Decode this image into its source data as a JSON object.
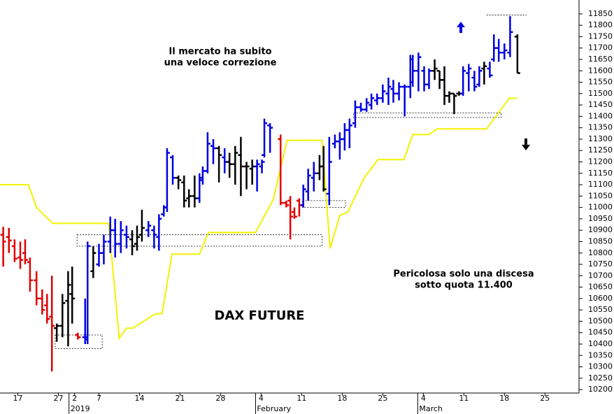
{
  "chart_data": {
    "type": "ohlc",
    "title": "DAX FUTURE",
    "annotations": [
      "Il mercato ha subito",
      "una veloce correzione",
      "Pericolosa solo una discesa",
      "sotto quota 11.400"
    ],
    "xlim": [
      -2.2,
      69.2
    ],
    "ylim": [
      10185,
      11911
    ],
    "yticks": [
      10200,
      10250,
      10300,
      10350,
      10400,
      10450,
      10500,
      10550,
      10600,
      10650,
      10700,
      10750,
      10800,
      10850,
      10900,
      10950,
      11000,
      11050,
      11100,
      11150,
      11200,
      11250,
      11300,
      11350,
      11400,
      11450,
      11500,
      11550,
      11600,
      11650,
      11700,
      11750,
      11800,
      11850
    ],
    "xticks": [
      {
        "value": 0,
        "label": "17"
      },
      {
        "value": 5,
        "label": "27"
      },
      {
        "value": 7,
        "label": "2"
      },
      {
        "value": 10,
        "label": "7"
      },
      {
        "value": 15,
        "label": "14"
      },
      {
        "value": 20,
        "label": "21"
      },
      {
        "value": 25,
        "label": "28"
      },
      {
        "value": 30,
        "label": "4"
      },
      {
        "value": 35,
        "label": "11"
      },
      {
        "value": 40,
        "label": "18"
      },
      {
        "value": 45,
        "label": "25"
      },
      {
        "value": 50,
        "label": "4"
      },
      {
        "value": 55,
        "label": "11"
      },
      {
        "value": 60,
        "label": "18"
      },
      {
        "value": 65,
        "label": "25"
      }
    ],
    "xticks_major": [
      {
        "value": 7,
        "label": "2019"
      },
      {
        "value": 30,
        "label": "February"
      },
      {
        "value": 50,
        "label": "March"
      }
    ],
    "bars": [
      {
        "x": -1.8,
        "open": 10880,
        "high": 10915,
        "low": 10740,
        "close": 10850,
        "color": "#e00000"
      },
      {
        "x": -1.1,
        "open": 10870,
        "high": 10910,
        "low": 10800,
        "close": 10855,
        "color": "#e00000"
      },
      {
        "x": -0.4,
        "open": 10830,
        "high": 10860,
        "low": 10760,
        "close": 10775,
        "color": "#e00000"
      },
      {
        "x": 0.3,
        "open": 10780,
        "high": 10850,
        "low": 10730,
        "close": 10770,
        "color": "#e00000"
      },
      {
        "x": 0.9,
        "open": 10800,
        "high": 10860,
        "low": 10750,
        "close": 10770,
        "color": "#e00000"
      },
      {
        "x": 1.5,
        "open": 10760,
        "high": 10780,
        "low": 10630,
        "close": 10680,
        "color": "#e00000"
      },
      {
        "x": 2.3,
        "open": 10680,
        "high": 10720,
        "low": 10570,
        "close": 10600,
        "color": "#e00000"
      },
      {
        "x": 3.0,
        "open": 10600,
        "high": 10640,
        "low": 10530,
        "close": 10550,
        "color": "#e00000"
      },
      {
        "x": 3.6,
        "open": 10570,
        "high": 10620,
        "low": 10490,
        "close": 10510,
        "color": "#e00000"
      },
      {
        "x": 4.2,
        "open": 10520,
        "high": 10700,
        "low": 10280,
        "close": 10480,
        "color": "#e00000"
      },
      {
        "x": 4.8,
        "open": 10470,
        "high": 10490,
        "low": 10410,
        "close": 10480,
        "color": "#000000"
      },
      {
        "x": 5.5,
        "open": 10480,
        "high": 10620,
        "low": 10430,
        "close": 10580,
        "color": "#000000"
      },
      {
        "x": 6.2,
        "open": 10590,
        "high": 10720,
        "low": 10390,
        "close": 10660,
        "color": "#000000"
      },
      {
        "x": 6.7,
        "open": 10620,
        "high": 10740,
        "low": 10490,
        "close": 10600,
        "color": "#000000"
      },
      {
        "x": 7.4,
        "open": 10440,
        "high": 10450,
        "low": 10420,
        "close": 10430,
        "color": "#e00000"
      },
      {
        "x": 8.3,
        "open": 10430,
        "high": 10600,
        "low": 10400,
        "close": 10420,
        "color": "#0000e0"
      },
      {
        "x": 8.6,
        "open": 10430,
        "high": 10850,
        "low": 10400,
        "close": 10830,
        "color": "#0000e0"
      },
      {
        "x": 9.3,
        "open": 10720,
        "high": 10830,
        "low": 10690,
        "close": 10800,
        "color": "#000000"
      },
      {
        "x": 10.0,
        "open": 10750,
        "high": 10840,
        "low": 10740,
        "close": 10800,
        "color": "#0000e0"
      },
      {
        "x": 10.6,
        "open": 10800,
        "high": 10880,
        "low": 10750,
        "close": 10850,
        "color": "#0000e0"
      },
      {
        "x": 11.4,
        "open": 10850,
        "high": 10960,
        "low": 10800,
        "close": 10900,
        "color": "#0000e0"
      },
      {
        "x": 12.0,
        "open": 10900,
        "high": 10950,
        "low": 10780,
        "close": 10840,
        "color": "#0000e0"
      },
      {
        "x": 12.7,
        "open": 10840,
        "high": 10940,
        "low": 10800,
        "close": 10900,
        "color": "#0000e0"
      },
      {
        "x": 13.4,
        "open": 10880,
        "high": 10920,
        "low": 10820,
        "close": 10870,
        "color": "#0000e0"
      },
      {
        "x": 14.1,
        "open": 10860,
        "high": 10900,
        "low": 10790,
        "close": 10830,
        "color": "#000000"
      },
      {
        "x": 14.7,
        "open": 10840,
        "high": 10920,
        "low": 10810,
        "close": 10870,
        "color": "#000000"
      },
      {
        "x": 15.3,
        "open": 10880,
        "high": 10990,
        "low": 10850,
        "close": 10910,
        "color": "#000000"
      },
      {
        "x": 16.1,
        "open": 10900,
        "high": 10940,
        "low": 10870,
        "close": 10920,
        "color": "#0000e0"
      },
      {
        "x": 16.8,
        "open": 10900,
        "high": 10920,
        "low": 10820,
        "close": 10880,
        "color": "#0000e0"
      },
      {
        "x": 17.4,
        "open": 10870,
        "high": 10970,
        "low": 10810,
        "close": 10950,
        "color": "#0000e0"
      },
      {
        "x": 18.0,
        "open": 10970,
        "high": 11010,
        "low": 10960,
        "close": 11000,
        "color": "#0000e0"
      },
      {
        "x": 18.4,
        "open": 11000,
        "high": 11260,
        "low": 10980,
        "close": 11240,
        "color": "#0000e0"
      },
      {
        "x": 19.1,
        "open": 11220,
        "high": 11230,
        "low": 11100,
        "close": 11130,
        "color": "#0000e0"
      },
      {
        "x": 19.8,
        "open": 11130,
        "high": 11140,
        "low": 11080,
        "close": 11120,
        "color": "#000000"
      },
      {
        "x": 20.5,
        "open": 11110,
        "high": 11140,
        "low": 11000,
        "close": 11030,
        "color": "#000000"
      },
      {
        "x": 21.1,
        "open": 11040,
        "high": 11080,
        "low": 11000,
        "close": 11050,
        "color": "#000000"
      },
      {
        "x": 21.8,
        "open": 11050,
        "high": 11140,
        "low": 11000,
        "close": 11040,
        "color": "#000000"
      },
      {
        "x": 22.4,
        "open": 11040,
        "high": 11150,
        "low": 11020,
        "close": 11130,
        "color": "#0000e0"
      },
      {
        "x": 22.8,
        "open": 11120,
        "high": 11180,
        "low": 11100,
        "close": 11160,
        "color": "#0000e0"
      },
      {
        "x": 23.4,
        "open": 11160,
        "high": 11330,
        "low": 11150,
        "close": 11280,
        "color": "#0000e0"
      },
      {
        "x": 24.1,
        "open": 11270,
        "high": 11300,
        "low": 11190,
        "close": 11260,
        "color": "#0000e0"
      },
      {
        "x": 24.8,
        "open": 11260,
        "high": 11270,
        "low": 11110,
        "close": 11230,
        "color": "#000000"
      },
      {
        "x": 25.5,
        "open": 11220,
        "high": 11260,
        "low": 11150,
        "close": 11200,
        "color": "#0000e0"
      },
      {
        "x": 26.1,
        "open": 11200,
        "high": 11240,
        "low": 11130,
        "close": 11190,
        "color": "#000000"
      },
      {
        "x": 26.8,
        "open": 11190,
        "high": 11270,
        "low": 11100,
        "close": 11240,
        "color": "#000000"
      },
      {
        "x": 27.5,
        "open": 11230,
        "high": 11310,
        "low": 11050,
        "close": 11180,
        "color": "#000000"
      },
      {
        "x": 28.2,
        "open": 11180,
        "high": 11200,
        "low": 11080,
        "close": 11180,
        "color": "#000000"
      },
      {
        "x": 28.9,
        "open": 11170,
        "high": 11210,
        "low": 11100,
        "close": 11180,
        "color": "#000000"
      },
      {
        "x": 29.5,
        "open": 11180,
        "high": 11210,
        "low": 11070,
        "close": 11190,
        "color": "#0000e0"
      },
      {
        "x": 30.1,
        "open": 11180,
        "high": 11210,
        "low": 11150,
        "close": 11200,
        "color": "#0000e0"
      },
      {
        "x": 30.4,
        "open": 11230,
        "high": 11390,
        "low": 11220,
        "close": 11370,
        "color": "#0000e0"
      },
      {
        "x": 31.1,
        "open": 11360,
        "high": 11370,
        "low": 11240,
        "close": 11350,
        "color": "#0000e0"
      },
      {
        "x": 32.4,
        "open": 11300,
        "high": 11320,
        "low": 11010,
        "close": 11020,
        "color": "#e00000"
      },
      {
        "x": 33.1,
        "open": 11020,
        "high": 11030,
        "low": 11000,
        "close": 11010,
        "color": "#e00000"
      },
      {
        "x": 33.6,
        "open": 11030,
        "high": 11050,
        "low": 10860,
        "close": 10960,
        "color": "#e00000"
      },
      {
        "x": 34.1,
        "open": 10980,
        "high": 11000,
        "low": 10950,
        "close": 10960,
        "color": "#e00000"
      },
      {
        "x": 34.7,
        "open": 11030,
        "high": 11040,
        "low": 10960,
        "close": 11010,
        "color": "#e00000"
      },
      {
        "x": 35.2,
        "open": 11010,
        "high": 11100,
        "low": 11000,
        "close": 11080,
        "color": "#0000e0"
      },
      {
        "x": 35.8,
        "open": 11070,
        "high": 11170,
        "low": 11030,
        "close": 11140,
        "color": "#0000e0"
      },
      {
        "x": 36.5,
        "open": 11130,
        "high": 11200,
        "low": 11070,
        "close": 11150,
        "color": "#0000e0"
      },
      {
        "x": 37.2,
        "open": 11150,
        "high": 11230,
        "low": 11120,
        "close": 11180,
        "color": "#000000"
      },
      {
        "x": 37.7,
        "open": 11180,
        "high": 11270,
        "low": 11070,
        "close": 11080,
        "color": "#000000"
      },
      {
        "x": 38.4,
        "open": 11060,
        "high": 11310,
        "low": 11010,
        "close": 11200,
        "color": "#0000e0"
      },
      {
        "x": 39.1,
        "open": 11280,
        "high": 11320,
        "low": 11260,
        "close": 11290,
        "color": "#0000e0"
      },
      {
        "x": 39.7,
        "open": 11290,
        "high": 11330,
        "low": 11210,
        "close": 11300,
        "color": "#0000e0"
      },
      {
        "x": 40.3,
        "open": 11300,
        "high": 11370,
        "low": 11250,
        "close": 11340,
        "color": "#0000e0"
      },
      {
        "x": 40.9,
        "open": 11340,
        "high": 11390,
        "low": 11260,
        "close": 11360,
        "color": "#0000e0"
      },
      {
        "x": 41.6,
        "open": 11370,
        "high": 11470,
        "low": 11350,
        "close": 11440,
        "color": "#0000e0"
      },
      {
        "x": 42.3,
        "open": 11440,
        "high": 11460,
        "low": 11420,
        "close": 11430,
        "color": "#0000e0"
      },
      {
        "x": 43.0,
        "open": 11430,
        "high": 11480,
        "low": 11420,
        "close": 11460,
        "color": "#0000e0"
      },
      {
        "x": 43.6,
        "open": 11450,
        "high": 11500,
        "low": 11430,
        "close": 11480,
        "color": "#0000e0"
      },
      {
        "x": 44.3,
        "open": 11470,
        "high": 11500,
        "low": 11450,
        "close": 11480,
        "color": "#0000e0"
      },
      {
        "x": 45.0,
        "open": 11480,
        "high": 11540,
        "low": 11460,
        "close": 11510,
        "color": "#0000e0"
      },
      {
        "x": 45.7,
        "open": 11500,
        "high": 11570,
        "low": 11450,
        "close": 11530,
        "color": "#0000e0"
      },
      {
        "x": 46.3,
        "open": 11520,
        "high": 11560,
        "low": 11460,
        "close": 11500,
        "color": "#0000e0"
      },
      {
        "x": 47.0,
        "open": 11500,
        "high": 11550,
        "low": 11470,
        "close": 11530,
        "color": "#0000e0"
      },
      {
        "x": 47.7,
        "open": 11530,
        "high": 11540,
        "low": 11400,
        "close": 11530,
        "color": "#0000e0"
      },
      {
        "x": 48.4,
        "open": 11530,
        "high": 11670,
        "low": 11480,
        "close": 11650,
        "color": "#0000e0"
      },
      {
        "x": 48.7,
        "open": 11550,
        "high": 11670,
        "low": 11530,
        "close": 11600,
        "color": "#0000e0"
      },
      {
        "x": 49.4,
        "open": 11600,
        "high": 11680,
        "low": 11510,
        "close": 11660,
        "color": "#0000e0"
      },
      {
        "x": 50.1,
        "open": 11600,
        "high": 11620,
        "low": 11510,
        "close": 11540,
        "color": "#0000e0"
      },
      {
        "x": 50.7,
        "open": 11540,
        "high": 11610,
        "low": 11520,
        "close": 11600,
        "color": "#0000e0"
      },
      {
        "x": 51.4,
        "open": 11600,
        "high": 11650,
        "low": 11560,
        "close": 11610,
        "color": "#000000"
      },
      {
        "x": 52.0,
        "open": 11600,
        "high": 11600,
        "low": 11520,
        "close": 11560,
        "color": "#000000"
      },
      {
        "x": 52.6,
        "open": 11560,
        "high": 11620,
        "low": 11450,
        "close": 11490,
        "color": "#000000"
      },
      {
        "x": 53.2,
        "open": 11490,
        "high": 11510,
        "low": 11460,
        "close": 11500,
        "color": "#000000"
      },
      {
        "x": 53.8,
        "open": 11500,
        "high": 11500,
        "low": 11410,
        "close": 11490,
        "color": "#000000"
      },
      {
        "x": 54.4,
        "open": 11500,
        "high": 11510,
        "low": 11490,
        "close": 11500,
        "color": "#000000"
      },
      {
        "x": 54.9,
        "open": 11500,
        "high": 11620,
        "low": 11490,
        "close": 11600,
        "color": "#0000e0"
      },
      {
        "x": 55.6,
        "open": 11590,
        "high": 11630,
        "low": 11510,
        "close": 11610,
        "color": "#0000e0"
      },
      {
        "x": 56.3,
        "open": 11570,
        "high": 11600,
        "low": 11510,
        "close": 11530,
        "color": "#0000e0"
      },
      {
        "x": 56.9,
        "open": 11540,
        "high": 11620,
        "low": 11530,
        "close": 11600,
        "color": "#0000e0"
      },
      {
        "x": 57.5,
        "open": 11610,
        "high": 11640,
        "low": 11540,
        "close": 11620,
        "color": "#000000"
      },
      {
        "x": 58.2,
        "open": 11610,
        "high": 11640,
        "low": 11570,
        "close": 11580,
        "color": "#0000e0"
      },
      {
        "x": 58.7,
        "open": 11650,
        "high": 11760,
        "low": 11640,
        "close": 11700,
        "color": "#0000e0"
      },
      {
        "x": 59.3,
        "open": 11700,
        "high": 11740,
        "low": 11640,
        "close": 11680,
        "color": "#0000e0"
      },
      {
        "x": 60.0,
        "open": 11680,
        "high": 11720,
        "low": 11650,
        "close": 11690,
        "color": "#0000e0"
      },
      {
        "x": 60.7,
        "open": 11680,
        "high": 11840,
        "low": 11660,
        "close": 11770,
        "color": "#0000e0"
      },
      {
        "x": 61.6,
        "open": 11750,
        "high": 11760,
        "low": 11590,
        "close": 11590,
        "color": "#000000"
      }
    ],
    "line": {
      "color": "#f2f200",
      "x": [
        -2.2,
        1.3,
        2.3,
        4.3,
        11.2,
        12.5,
        13.4,
        14.2,
        15.5,
        16.8,
        17.8,
        19.0,
        22.4,
        23.5,
        29.3,
        31.5,
        33.2,
        37.5,
        38.5,
        39.7,
        40.7,
        42.7,
        44.4,
        47.6,
        48.7,
        50.7,
        51.7,
        57.8,
        60.6,
        61.6
      ],
      "values": [
        11100,
        11100,
        11000,
        10930,
        10930,
        10425,
        10470,
        10470,
        10500,
        10530,
        10535,
        10795,
        10795,
        10890,
        10890,
        11035,
        11295,
        11295,
        10820,
        10965,
        10980,
        11130,
        11210,
        11210,
        11320,
        11320,
        11345,
        11345,
        11480,
        11480
      ]
    },
    "zones": [
      {
        "x1": 4.6,
        "x2": 10.4,
        "low": 10380,
        "high": 10440
      },
      {
        "x1": 7.3,
        "x2": 37.5,
        "low": 10830,
        "high": 10880
      },
      {
        "x1": 35.1,
        "x2": 40.4,
        "low": 11000,
        "high": 11030
      },
      {
        "x1": 41.4,
        "x2": 59.6,
        "low": 11395,
        "high": 11415
      },
      {
        "x1": 57.8,
        "x2": 62.7,
        "low": 11845,
        "high": 11845
      }
    ]
  }
}
